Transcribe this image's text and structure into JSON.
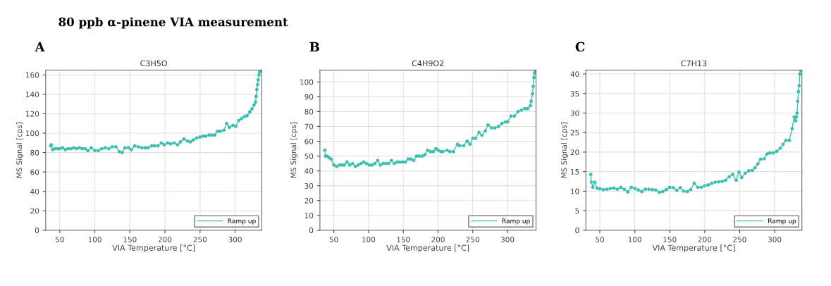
{
  "chart_data": [
    {
      "type": "line",
      "title": "C3H5O",
      "xlabel": "VIA Temperature [°C]",
      "ylabel": "MS Signal [cps]",
      "annotations": [
        "80 ppb α-pinene VIA measurement",
        "A"
      ],
      "xlim": [
        30,
        338
      ],
      "xticks": [
        50,
        100,
        150,
        200,
        250,
        300
      ],
      "ylim": [
        0,
        165
      ],
      "yticks": [
        0,
        20,
        40,
        60,
        80,
        100,
        120,
        140,
        160
      ],
      "grid": true,
      "legend": "bottom right",
      "marker": "circle",
      "line_style": "solid",
      "series": [
        {
          "name": "Ramp up",
          "color": "#3cbfae",
          "x": [
            37,
            38,
            40,
            43,
            47,
            50,
            54,
            58,
            62,
            66,
            70,
            74,
            78,
            82,
            86,
            90,
            95,
            100,
            105,
            110,
            115,
            120,
            125,
            130,
            135,
            139,
            143,
            148,
            152,
            157,
            162,
            167,
            172,
            176,
            181,
            185,
            190,
            195,
            199,
            204,
            208,
            213,
            218,
            222,
            227,
            232,
            236,
            240,
            245,
            250,
            254,
            258,
            263,
            267,
            271,
            275,
            279,
            284,
            288,
            292,
            297,
            301,
            305,
            309,
            313,
            317,
            321,
            324,
            327,
            329,
            330,
            331,
            332,
            333,
            334,
            335,
            336
          ],
          "values": [
            87,
            88,
            83,
            84,
            84,
            84,
            85,
            83,
            84,
            84,
            85,
            84,
            85,
            84,
            84,
            82,
            85,
            82,
            82,
            84,
            85,
            84,
            86,
            86,
            81,
            80,
            85,
            85,
            83,
            87,
            86,
            85,
            85,
            85,
            87,
            87,
            87,
            90,
            88,
            90,
            89,
            90,
            88,
            91,
            94,
            92,
            91,
            93,
            95,
            96,
            97,
            97,
            98,
            98,
            98,
            102,
            102,
            103,
            110,
            106,
            108,
            107,
            113,
            115,
            117,
            118,
            122,
            125,
            129,
            132,
            138,
            145,
            150,
            155,
            160,
            163,
            165
          ]
        }
      ]
    },
    {
      "type": "line",
      "title": "C4H9O2",
      "xlabel": "VIA Temperature [°C]",
      "ylabel": "MS Signal [cps]",
      "annotations": [
        "B"
      ],
      "xlim": [
        30,
        341
      ],
      "xticks": [
        50,
        100,
        150,
        200,
        250,
        300
      ],
      "ylim": [
        0,
        108
      ],
      "yticks": [
        0,
        10,
        20,
        30,
        40,
        50,
        60,
        70,
        80,
        90,
        100
      ],
      "grid": true,
      "legend": "bottom right",
      "marker": "circle",
      "line_style": "solid",
      "series": [
        {
          "name": "Ramp up",
          "color": "#3cbfae",
          "x": [
            37,
            38,
            40,
            43,
            46,
            50,
            54,
            58,
            62,
            65,
            69,
            73,
            77,
            81,
            85,
            89,
            93,
            97,
            101,
            105,
            109,
            113,
            117,
            121,
            125,
            129,
            133,
            137,
            141,
            145,
            149,
            153,
            157,
            161,
            165,
            169,
            173,
            177,
            181,
            185,
            189,
            193,
            197,
            200,
            204,
            207,
            213,
            217,
            222,
            228,
            231,
            237,
            242,
            246,
            250,
            254,
            259,
            263,
            268,
            272,
            277,
            282,
            287,
            292,
            297,
            300,
            305,
            310,
            315,
            320,
            325,
            329,
            333,
            334,
            336,
            337,
            338,
            339,
            340
          ],
          "values": [
            54,
            50,
            50,
            49,
            48,
            44,
            43,
            44,
            44,
            44,
            46,
            44,
            45,
            43,
            44,
            45,
            46,
            45,
            44,
            44,
            45,
            47,
            44,
            45,
            45,
            45,
            47,
            45,
            46,
            46,
            46,
            46,
            48,
            48,
            47,
            50,
            50,
            50,
            51,
            54,
            53,
            53,
            55,
            54,
            53,
            53,
            54,
            53,
            53,
            58,
            57,
            57,
            60,
            58,
            62,
            62,
            66,
            64,
            67,
            71,
            69,
            69,
            70,
            72,
            73,
            73,
            77,
            77,
            80,
            81,
            82,
            82,
            84,
            87,
            92,
            97,
            103,
            106,
            108
          ]
        }
      ]
    },
    {
      "type": "line",
      "title": "C7H13",
      "xlabel": "VIA Temperature [°C]",
      "ylabel": "MS Signal [cps]",
      "annotations": [
        "C"
      ],
      "xlim": [
        30,
        339
      ],
      "xticks": [
        50,
        100,
        150,
        200,
        250,
        300
      ],
      "ylim": [
        0,
        41
      ],
      "yticks": [
        0,
        5,
        10,
        15,
        20,
        25,
        30,
        35,
        40
      ],
      "grid": true,
      "legend": "bottom right",
      "marker": "circle",
      "line_style": "solid",
      "series": [
        {
          "name": "Ramp up",
          "color": "#3cbfae",
          "x": [
            37,
            38,
            40,
            43,
            46,
            50,
            55,
            60,
            65,
            70,
            75,
            80,
            85,
            90,
            95,
            100,
            105,
            110,
            115,
            120,
            125,
            130,
            135,
            140,
            145,
            150,
            155,
            160,
            165,
            170,
            175,
            180,
            185,
            190,
            195,
            200,
            205,
            210,
            215,
            220,
            225,
            230,
            235,
            240,
            245,
            249,
            253,
            258,
            263,
            268,
            272,
            276,
            280,
            285,
            289,
            293,
            298,
            303,
            308,
            312,
            316,
            321,
            325,
            328,
            330,
            331,
            332,
            333,
            334,
            335,
            336,
            337
          ],
          "values": [
            14.3,
            12.3,
            11,
            12.3,
            10.8,
            10.6,
            10.4,
            10.5,
            10.7,
            10.8,
            10.5,
            11,
            10.5,
            9.8,
            11,
            10.7,
            10.3,
            9.9,
            10.5,
            10.5,
            10.4,
            10.3,
            9.7,
            9.9,
            10.4,
            11,
            10.9,
            10.2,
            10.9,
            10,
            9.9,
            10.4,
            12,
            11,
            11,
            11.4,
            11.6,
            12,
            12.3,
            12.4,
            12.5,
            12.8,
            13.7,
            14.3,
            12.8,
            14.9,
            13.5,
            14.6,
            15.2,
            15.3,
            16,
            17,
            18.2,
            18.3,
            19.5,
            19.8,
            19.8,
            20.2,
            21,
            22,
            23,
            23,
            26,
            29,
            28,
            29,
            30,
            33,
            35.5,
            37,
            40,
            41
          ]
        }
      ]
    }
  ]
}
